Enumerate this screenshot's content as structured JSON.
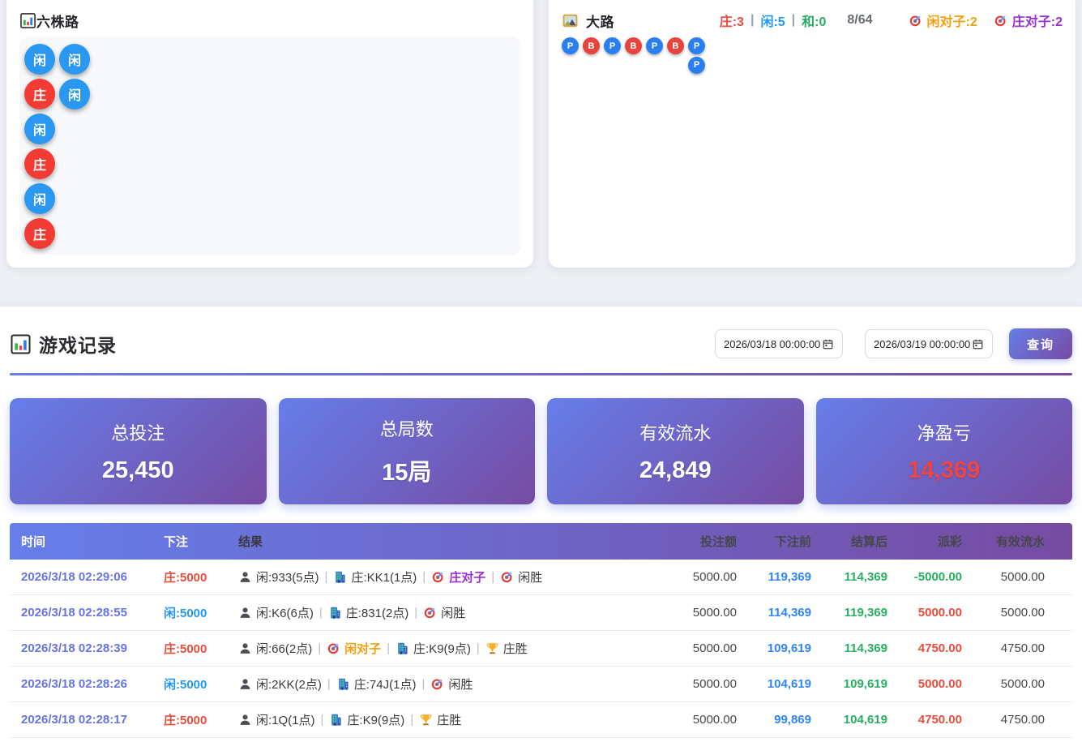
{
  "six_road_card": {
    "icon": "bar-chart-icon",
    "title": "六株路",
    "results": [
      {
        "label": "闲",
        "type": "P"
      },
      {
        "label": "庄",
        "type": "B"
      },
      {
        "label": "闲",
        "type": "P"
      },
      {
        "label": "庄",
        "type": "B"
      },
      {
        "label": "闲",
        "type": "P"
      },
      {
        "label": "庄",
        "type": "B"
      },
      {
        "label": "闲",
        "type": "P"
      },
      {
        "label": "闲",
        "type": "P"
      }
    ]
  },
  "big_road_card": {
    "icon": "landscape-icon",
    "title": "大路",
    "stats": [
      {
        "label": "庄:3",
        "color": "#e74c3c"
      },
      {
        "label": "闲:5",
        "color": "#2196f3"
      },
      {
        "label": "和:0",
        "color": "#27ae60"
      }
    ],
    "round_counter": "8/64",
    "pairs": [
      {
        "icon": "dart-icon",
        "label": "闲对子:2",
        "color": "#f59e0b"
      },
      {
        "icon": "dart-icon",
        "label": "庄对子:2",
        "color": "#9b2fd6"
      }
    ],
    "columns": [
      [
        "P"
      ],
      [
        "B"
      ],
      [
        "P"
      ],
      [
        "B"
      ],
      [
        "P"
      ],
      [
        "B"
      ],
      [
        "P",
        "P"
      ]
    ]
  },
  "records": {
    "icon": "bar-chart-icon",
    "title": "游戏记录",
    "date_from": "2026/03/18 00:00:00",
    "date_to": "2026/03/19 00:00:00",
    "query_label": "查询",
    "summary_cards": [
      {
        "label": "总投注",
        "value": "25,450",
        "value_color": "#ffffff"
      },
      {
        "label": "总局数",
        "value": "15局",
        "value_color": "#ffffff"
      },
      {
        "label": "有效流水",
        "value": "24,849",
        "value_color": "#ffffff"
      },
      {
        "label": "净盈亏",
        "value": "14,369",
        "value_color": "#f04545"
      }
    ],
    "table": {
      "headers": [
        "时间",
        "下注",
        "结果",
        "投注额",
        "下注前",
        "结算后",
        "派彩",
        "有效流水"
      ],
      "rows": [
        {
          "time": "2026/3/18 02:29:06",
          "bet": {
            "text": "庄:5000",
            "color": "#e74c3c"
          },
          "result": [
            {
              "icon": "person-icon",
              "text": "闲:933(5点)"
            },
            {
              "icon": "building-icon",
              "text": "庄:KK1(1点)"
            },
            {
              "icon": "dart-icon",
              "text": "庄对子",
              "color": "#9b2fd6"
            },
            {
              "icon": "dart-icon",
              "text": "闲胜"
            }
          ],
          "bet_amount": "5000.00",
          "before": "119,369",
          "after": "114,369",
          "payout": {
            "text": "-5000.00",
            "color": "#27ae60"
          },
          "turnover": "5000.00"
        },
        {
          "time": "2026/3/18 02:28:55",
          "bet": {
            "text": "闲:5000",
            "color": "#2196f3"
          },
          "result": [
            {
              "icon": "person-icon",
              "text": "闲:K6(6点)"
            },
            {
              "icon": "building-icon",
              "text": "庄:831(2点)"
            },
            {
              "icon": "dart-icon",
              "text": "闲胜"
            }
          ],
          "bet_amount": "5000.00",
          "before": "114,369",
          "after": "119,369",
          "payout": {
            "text": "5000.00",
            "color": "#e74c3c"
          },
          "turnover": "5000.00"
        },
        {
          "time": "2026/3/18 02:28:39",
          "bet": {
            "text": "庄:5000",
            "color": "#e74c3c"
          },
          "result": [
            {
              "icon": "person-icon",
              "text": "闲:66(2点)"
            },
            {
              "icon": "dart-icon",
              "text": "闲对子",
              "color": "#f59e0b"
            },
            {
              "icon": "building-icon",
              "text": "庄:K9(9点)"
            },
            {
              "icon": "trophy-icon",
              "text": "庄胜"
            }
          ],
          "bet_amount": "5000.00",
          "before": "109,619",
          "after": "114,369",
          "payout": {
            "text": "4750.00",
            "color": "#e74c3c"
          },
          "turnover": "4750.00"
        },
        {
          "time": "2026/3/18 02:28:26",
          "bet": {
            "text": "闲:5000",
            "color": "#2196f3"
          },
          "result": [
            {
              "icon": "person-icon",
              "text": "闲:2KK(2点)"
            },
            {
              "icon": "building-icon",
              "text": "庄:74J(1点)"
            },
            {
              "icon": "dart-icon",
              "text": "闲胜"
            }
          ],
          "bet_amount": "5000.00",
          "before": "104,619",
          "after": "109,619",
          "payout": {
            "text": "5000.00",
            "color": "#e74c3c"
          },
          "turnover": "5000.00"
        },
        {
          "time": "2026/3/18 02:28:17",
          "bet": {
            "text": "庄:5000",
            "color": "#e74c3c"
          },
          "result": [
            {
              "icon": "person-icon",
              "text": "闲:1Q(1点)"
            },
            {
              "icon": "building-icon",
              "text": "庄:K9(9点)"
            },
            {
              "icon": "trophy-icon",
              "text": "庄胜"
            }
          ],
          "bet_amount": "5000.00",
          "before": "99,869",
          "after": "104,619",
          "payout": {
            "text": "4750.00",
            "color": "#e74c3c"
          },
          "turnover": "4750.00"
        }
      ]
    }
  },
  "colors": {
    "accent_gradient_start": "#667eea",
    "accent_gradient_end": "#764ba2",
    "player_blue": "#2196f3",
    "banker_red": "#e74c3c",
    "tie_green": "#27ae60",
    "pair_orange": "#f59e0b",
    "pair_purple": "#9b2fd6",
    "loss_red": "#f04545"
  }
}
